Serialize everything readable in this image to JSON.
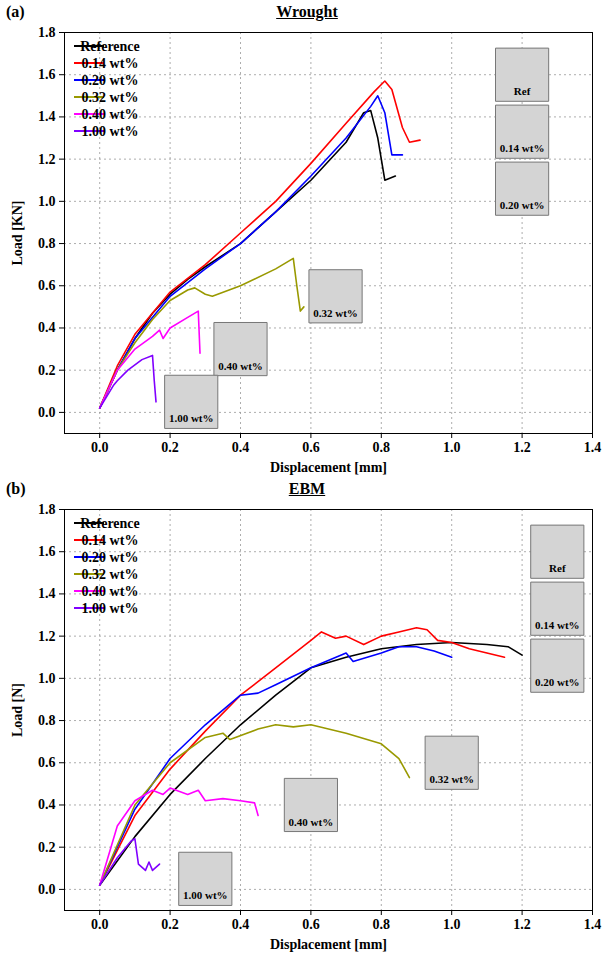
{
  "chart_data": [
    {
      "type": "line",
      "panel": "(a)",
      "title": "Wrought",
      "x_label": "Displacement [mm]",
      "y_label": "Load [KN]",
      "xlim": [
        -0.1,
        1.4
      ],
      "ylim": [
        -0.1,
        1.8
      ],
      "xticks": [
        {
          "value": 0,
          "label": "0.0"
        },
        0.2,
        0.4,
        0.6,
        0.8,
        {
          "value": 1,
          "label": "1.0"
        },
        1.2,
        1.4
      ],
      "yticks": [
        {
          "value": 0,
          "label": "0.0"
        },
        0.2,
        0.4,
        0.6,
        0.8,
        {
          "value": 1,
          "label": "1.0"
        },
        1.2,
        1.4,
        1.6,
        1.8
      ],
      "grid": true,
      "legend": "top-left",
      "series": [
        {
          "name": "Reference",
          "color": "#000000",
          "x": [
            0,
            0.05,
            0.1,
            0.15,
            0.2,
            0.25,
            0.3,
            0.4,
            0.5,
            0.6,
            0.7,
            0.75,
            0.77,
            0.79,
            0.81,
            0.84
          ],
          "values": [
            0.02,
            0.2,
            0.35,
            0.47,
            0.56,
            0.63,
            0.69,
            0.8,
            0.95,
            1.1,
            1.28,
            1.42,
            1.43,
            1.3,
            1.1,
            1.12
          ]
        },
        {
          "name": "0.14 wt%",
          "color": "#ff0000",
          "x": [
            0,
            0.05,
            0.1,
            0.2,
            0.3,
            0.4,
            0.5,
            0.6,
            0.7,
            0.78,
            0.81,
            0.83,
            0.86,
            0.88,
            0.91
          ],
          "values": [
            0.02,
            0.22,
            0.37,
            0.57,
            0.7,
            0.85,
            1.0,
            1.18,
            1.37,
            1.52,
            1.57,
            1.53,
            1.35,
            1.28,
            1.29
          ]
        },
        {
          "name": "0.20 wt%",
          "color": "#0000ff",
          "x": [
            0,
            0.05,
            0.1,
            0.2,
            0.3,
            0.4,
            0.5,
            0.6,
            0.7,
            0.77,
            0.79,
            0.81,
            0.83,
            0.86
          ],
          "values": [
            0.02,
            0.2,
            0.35,
            0.55,
            0.68,
            0.8,
            0.95,
            1.12,
            1.3,
            1.45,
            1.5,
            1.42,
            1.22,
            1.22
          ]
        },
        {
          "name": "0.32 wt%",
          "color": "#999900",
          "x": [
            0,
            0.05,
            0.1,
            0.15,
            0.2,
            0.25,
            0.27,
            0.3,
            0.32,
            0.4,
            0.5,
            0.55,
            0.56,
            0.57,
            0.58
          ],
          "values": [
            0.02,
            0.2,
            0.33,
            0.44,
            0.53,
            0.58,
            0.59,
            0.56,
            0.55,
            0.6,
            0.68,
            0.73,
            0.6,
            0.48,
            0.5
          ]
        },
        {
          "name": "0.40 wt%",
          "color": "#ff00ff",
          "x": [
            0,
            0.05,
            0.1,
            0.15,
            0.17,
            0.18,
            0.2,
            0.25,
            0.28,
            0.285
          ],
          "values": [
            0.02,
            0.2,
            0.3,
            0.36,
            0.39,
            0.35,
            0.4,
            0.45,
            0.48,
            0.28
          ]
        },
        {
          "name": "1.00 wt%",
          "color": "#8000ff",
          "x": [
            0,
            0.04,
            0.05,
            0.08,
            0.12,
            0.15,
            0.155,
            0.16
          ],
          "values": [
            0.02,
            0.13,
            0.15,
            0.2,
            0.25,
            0.27,
            0.15,
            0.05
          ]
        }
      ],
      "annotations": [
        {
          "text": "Ref",
          "x": 1.2,
          "y": 1.6
        },
        {
          "text": "0.14 wt%",
          "x": 1.2,
          "y": 1.33
        },
        {
          "text": "0.20 wt%",
          "x": 1.2,
          "y": 1.06
        },
        {
          "text": "0.32 wt%",
          "x": 0.67,
          "y": 0.55
        },
        {
          "text": "0.40 wt%",
          "x": 0.4,
          "y": 0.3
        },
        {
          "text": "1.00 wt%",
          "x": 0.26,
          "y": 0.05
        }
      ]
    },
    {
      "type": "line",
      "panel": "(b)",
      "title": "EBM",
      "x_label": "Displacement [mm]",
      "y_label": "Load [N]",
      "xlim": [
        -0.1,
        1.4
      ],
      "ylim": [
        -0.1,
        1.8
      ],
      "xticks": [
        {
          "value": 0,
          "label": "0.0"
        },
        0.2,
        0.4,
        0.6,
        0.8,
        {
          "value": 1,
          "label": "1.0"
        },
        1.2,
        1.4
      ],
      "yticks": [
        {
          "value": 0,
          "label": "0.0"
        },
        0.2,
        0.4,
        0.6,
        0.8,
        {
          "value": 1,
          "label": "1.0"
        },
        1.2,
        1.4,
        1.6,
        1.8
      ],
      "grid": true,
      "legend": "top-left",
      "series": [
        {
          "name": "Reference",
          "color": "#000000",
          "x": [
            0,
            0.1,
            0.2,
            0.3,
            0.4,
            0.5,
            0.6,
            0.7,
            0.8,
            0.9,
            1.0,
            1.1,
            1.16,
            1.2
          ],
          "values": [
            0.02,
            0.25,
            0.45,
            0.62,
            0.78,
            0.92,
            1.05,
            1.1,
            1.14,
            1.16,
            1.17,
            1.16,
            1.15,
            1.11
          ]
        },
        {
          "name": "0.14 wt%",
          "color": "#ff0000",
          "x": [
            0,
            0.1,
            0.2,
            0.3,
            0.4,
            0.5,
            0.6,
            0.63,
            0.67,
            0.7,
            0.75,
            0.8,
            0.85,
            0.9,
            0.93,
            0.96,
            1.0,
            1.05,
            1.1,
            1.15
          ],
          "values": [
            0.02,
            0.35,
            0.57,
            0.75,
            0.92,
            1.05,
            1.18,
            1.22,
            1.19,
            1.2,
            1.16,
            1.2,
            1.22,
            1.24,
            1.23,
            1.18,
            1.17,
            1.14,
            1.12,
            1.1
          ]
        },
        {
          "name": "0.20 wt%",
          "color": "#0000ff",
          "x": [
            0,
            0.1,
            0.2,
            0.3,
            0.4,
            0.45,
            0.5,
            0.6,
            0.7,
            0.72,
            0.8,
            0.85,
            0.9,
            0.95,
            1.0
          ],
          "values": [
            0.02,
            0.38,
            0.62,
            0.78,
            0.92,
            0.93,
            0.97,
            1.05,
            1.12,
            1.08,
            1.12,
            1.15,
            1.15,
            1.13,
            1.1
          ]
        },
        {
          "name": "0.32 wt%",
          "color": "#999900",
          "x": [
            0,
            0.1,
            0.2,
            0.3,
            0.35,
            0.37,
            0.45,
            0.5,
            0.55,
            0.6,
            0.7,
            0.8,
            0.85,
            0.88
          ],
          "values": [
            0.02,
            0.4,
            0.6,
            0.72,
            0.74,
            0.71,
            0.76,
            0.78,
            0.77,
            0.78,
            0.74,
            0.69,
            0.62,
            0.53
          ]
        },
        {
          "name": "0.40 wt%",
          "color": "#ff00ff",
          "x": [
            0,
            0.05,
            0.1,
            0.15,
            0.18,
            0.2,
            0.25,
            0.28,
            0.3,
            0.35,
            0.4,
            0.44,
            0.45
          ],
          "values": [
            0.02,
            0.3,
            0.42,
            0.47,
            0.45,
            0.48,
            0.45,
            0.47,
            0.42,
            0.43,
            0.42,
            0.41,
            0.35
          ]
        },
        {
          "name": "1.00 wt%",
          "color": "#8000ff",
          "x": [
            0,
            0.05,
            0.09,
            0.1,
            0.11,
            0.13,
            0.14,
            0.15,
            0.17
          ],
          "values": [
            0.02,
            0.15,
            0.23,
            0.24,
            0.12,
            0.09,
            0.13,
            0.09,
            0.12
          ]
        }
      ],
      "annotations": [
        {
          "text": "Ref",
          "x": 1.3,
          "y": 1.6
        },
        {
          "text": "0.14 wt%",
          "x": 1.3,
          "y": 1.33
        },
        {
          "text": "0.20 wt%",
          "x": 1.3,
          "y": 1.06
        },
        {
          "text": "0.32 wt%",
          "x": 1.0,
          "y": 0.6
        },
        {
          "text": "0.40 wt%",
          "x": 0.6,
          "y": 0.4
        },
        {
          "text": "1.00 wt%",
          "x": 0.3,
          "y": 0.05
        }
      ]
    }
  ]
}
